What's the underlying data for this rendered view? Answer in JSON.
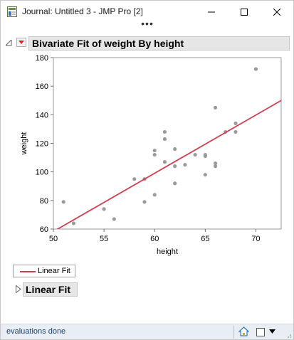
{
  "window": {
    "title": "Journal: Untitled 3 - JMP Pro [2]",
    "buttons": [
      "minimize",
      "maximize",
      "close"
    ]
  },
  "overflow_label": "•••",
  "report": {
    "section_title": "Bivariate Fit of weight By height",
    "legend_label": "Linear Fit",
    "subsection_title": "Linear Fit"
  },
  "chart_data": {
    "type": "scatter",
    "xlabel": "height",
    "ylabel": "weight",
    "xlim": [
      50,
      72.5
    ],
    "ylim": [
      60,
      180
    ],
    "xticks": [
      50,
      55,
      60,
      65,
      70
    ],
    "yticks": [
      60,
      80,
      100,
      120,
      140,
      160,
      180
    ],
    "grid": false,
    "points": [
      {
        "x": 51,
        "y": 79
      },
      {
        "x": 52,
        "y": 64
      },
      {
        "x": 55,
        "y": 74
      },
      {
        "x": 56,
        "y": 67
      },
      {
        "x": 58,
        "y": 95
      },
      {
        "x": 59,
        "y": 79
      },
      {
        "x": 59,
        "y": 95
      },
      {
        "x": 60,
        "y": 84
      },
      {
        "x": 60,
        "y": 112
      },
      {
        "x": 60,
        "y": 115
      },
      {
        "x": 61,
        "y": 107
      },
      {
        "x": 61,
        "y": 123
      },
      {
        "x": 61,
        "y": 128
      },
      {
        "x": 62,
        "y": 92
      },
      {
        "x": 62,
        "y": 104
      },
      {
        "x": 62,
        "y": 116
      },
      {
        "x": 63,
        "y": 105
      },
      {
        "x": 64,
        "y": 112
      },
      {
        "x": 65,
        "y": 98
      },
      {
        "x": 65,
        "y": 111
      },
      {
        "x": 65,
        "y": 112
      },
      {
        "x": 66,
        "y": 104
      },
      {
        "x": 66,
        "y": 106
      },
      {
        "x": 66,
        "y": 145
      },
      {
        "x": 67,
        "y": 128
      },
      {
        "x": 68,
        "y": 128
      },
      {
        "x": 68,
        "y": 134
      },
      {
        "x": 70,
        "y": 172
      }
    ],
    "fit_line": {
      "name": "Linear Fit",
      "x": [
        50.3,
        72.5
      ],
      "y": [
        59.5,
        150
      ]
    },
    "colors": {
      "points": "#9a9a9a",
      "fit": "#d04050"
    }
  },
  "status": {
    "text": "evaluations done"
  }
}
